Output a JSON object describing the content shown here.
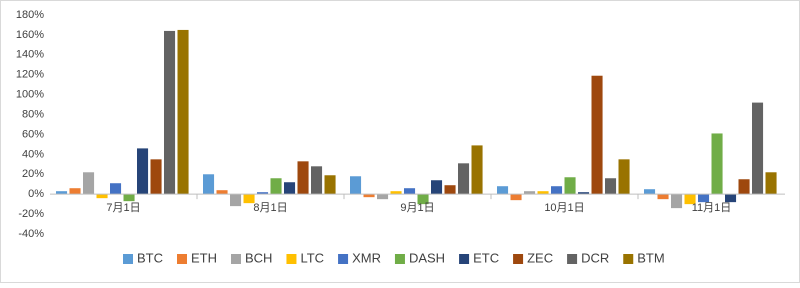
{
  "chart_data": {
    "type": "bar",
    "categories": [
      "7月1日",
      "8月1日",
      "9月1日",
      "10月1日",
      "11月1日"
    ],
    "series": [
      {
        "name": "BTC",
        "color": "#5b9bd5",
        "values": [
          3,
          20,
          18,
          8,
          5
        ]
      },
      {
        "name": "ETH",
        "color": "#ed7d31",
        "values": [
          6,
          4,
          -3,
          -6,
          -5
        ]
      },
      {
        "name": "BCH",
        "color": "#a5a5a5",
        "values": [
          22,
          -12,
          -5,
          3,
          -14
        ]
      },
      {
        "name": "LTC",
        "color": "#ffc000",
        "values": [
          -4,
          -9,
          3,
          3,
          -10
        ]
      },
      {
        "name": "XMR",
        "color": "#4472c4",
        "values": [
          11,
          2,
          6,
          8,
          -8
        ]
      },
      {
        "name": "DASH",
        "color": "#70ad47",
        "values": [
          -7,
          16,
          -10,
          17,
          61
        ]
      },
      {
        "name": "ETC",
        "color": "#264478",
        "values": [
          46,
          12,
          14,
          2,
          -8
        ]
      },
      {
        "name": "ZEC",
        "color": "#9e480e",
        "values": [
          35,
          33,
          9,
          119,
          15
        ]
      },
      {
        "name": "DCR",
        "color": "#636363",
        "values": [
          164,
          28,
          31,
          16,
          92
        ]
      },
      {
        "name": "BTM",
        "color": "#997300",
        "values": [
          165,
          19,
          49,
          35,
          22
        ]
      }
    ],
    "ylim": [
      -40,
      180
    ],
    "yticks": [
      {
        "value": -40,
        "label": "-40%"
      },
      {
        "value": -20,
        "label": "-20%"
      },
      {
        "value": 0,
        "label": "0%"
      },
      {
        "value": 20,
        "label": "20%"
      },
      {
        "value": 40,
        "label": "40%"
      },
      {
        "value": 60,
        "label": "60%"
      },
      {
        "value": 80,
        "label": "80%"
      },
      {
        "value": 100,
        "label": "100%"
      },
      {
        "value": 120,
        "label": "120%"
      },
      {
        "value": 140,
        "label": "140%"
      },
      {
        "value": 160,
        "label": "160%"
      },
      {
        "value": 180,
        "label": "180%"
      }
    ],
    "legend": "bottom",
    "grid": false
  }
}
